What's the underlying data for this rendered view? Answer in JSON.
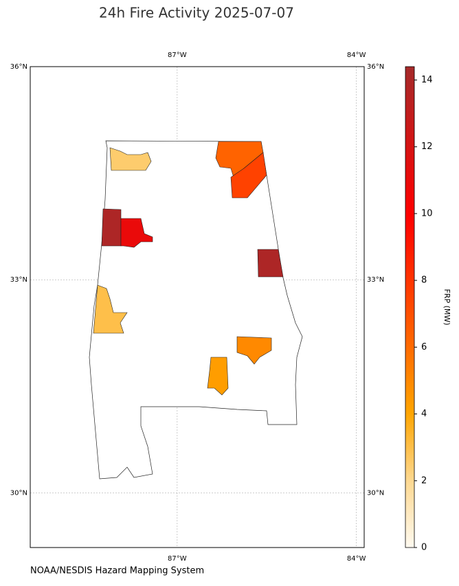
{
  "chart_data": {
    "type": "map",
    "title": "24h Fire Activity 2025-07-07",
    "credit": "NOAA/NESDIS Hazard Mapping System",
    "xlim": [
      -89.46,
      -83.87
    ],
    "ylim": [
      29.23,
      36
    ],
    "xticks": [
      {
        "value": -87,
        "label": "87°W"
      },
      {
        "value": -84,
        "label": "84°W"
      }
    ],
    "yticks": [
      {
        "value": 30,
        "label": "30°N"
      },
      {
        "value": 33,
        "label": "33°N"
      },
      {
        "value": 36,
        "label": "36°N"
      }
    ],
    "grid": true,
    "colorbar": {
      "label": "FRP (MW)",
      "lim": [
        0,
        14.4
      ],
      "ticks": [
        0,
        2,
        4,
        6,
        8,
        10,
        12,
        14
      ]
    },
    "fires": [
      {
        "value": 2.5
      },
      {
        "value": 6.3
      },
      {
        "value": 7.5
      },
      {
        "value": 14
      },
      {
        "value": 11
      },
      {
        "value": 14
      },
      {
        "value": 3
      },
      {
        "value": 5
      },
      {
        "value": 4.3
      }
    ]
  }
}
